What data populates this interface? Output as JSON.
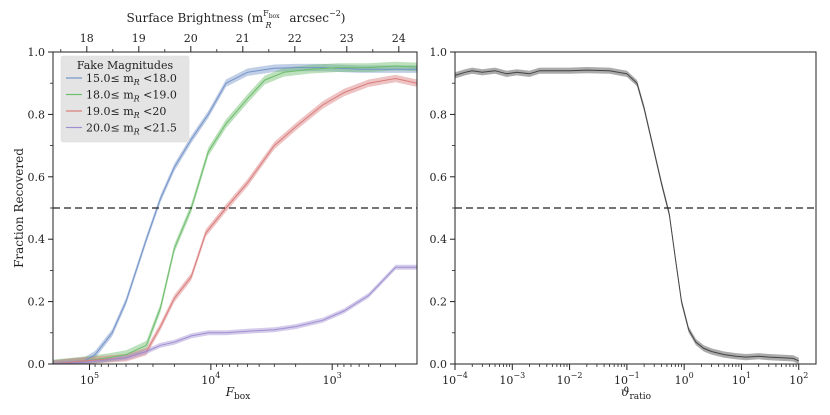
{
  "chart_data": [
    {
      "type": "line",
      "top_xlabel": "Surface Brightness",
      "top_xlabel_math": "(m",
      "top_xlabel_sub": "R",
      "top_xlabel_sup": "F",
      "top_xlabel_supsub": "box",
      "top_xlabel_unit": "arcsec",
      "top_xlabel_unit_sup": "−2",
      "top_xlabel_close": ")",
      "xlabel": "F",
      "xlabel_sub": "box",
      "ylabel": "Fraction Recovered",
      "x_scale": "log-reversed",
      "xlim": [
        200000,
        200
      ],
      "ylim": [
        0,
        1.0
      ],
      "x_ticks": [
        {
          "value": 100000,
          "base": "10",
          "exp": "5"
        },
        {
          "value": 10000,
          "base": "10",
          "exp": "4"
        },
        {
          "value": 1000,
          "base": "10",
          "exp": "3"
        }
      ],
      "top_ticks": [
        {
          "mag": 18,
          "label": "18"
        },
        {
          "mag": 19,
          "label": "19"
        },
        {
          "mag": 20,
          "label": "20"
        },
        {
          "mag": 21,
          "label": "21"
        },
        {
          "mag": 22,
          "label": "22"
        },
        {
          "mag": 23,
          "label": "23"
        },
        {
          "mag": 24,
          "label": "24"
        }
      ],
      "y_ticks": [
        "0.0",
        "0.2",
        "0.4",
        "0.6",
        "0.8",
        "1.0"
      ],
      "hline": 0.5,
      "legend": {
        "title": "Fake Magnitudes",
        "placement": "upper-left"
      },
      "series": [
        {
          "name": "15.0≤ m",
          "name_sub": "R",
          "name_tail": " <18.0",
          "color": "#7393c8",
          "band": 0.012,
          "x": [
            200000,
            110000,
            90000,
            65000,
            50000,
            34000,
            26000,
            20000,
            14500,
            10500,
            7500,
            5000,
            3000,
            2000,
            1200,
            600,
            200
          ],
          "y": [
            0.0,
            0.01,
            0.03,
            0.1,
            0.2,
            0.4,
            0.53,
            0.63,
            0.72,
            0.8,
            0.9,
            0.935,
            0.948,
            0.95,
            0.95,
            0.945,
            0.945
          ]
        },
        {
          "name": "18.0≤ m",
          "name_sub": "R",
          "name_tail": " <19.0",
          "color": "#6cbd6c",
          "band": 0.014,
          "x": [
            200000,
            110000,
            70000,
            50000,
            34000,
            26000,
            20000,
            14500,
            10500,
            7500,
            5000,
            3600,
            2500,
            1500,
            900,
            500,
            300,
            200
          ],
          "y": [
            0.0,
            0.01,
            0.02,
            0.03,
            0.06,
            0.18,
            0.37,
            0.5,
            0.68,
            0.77,
            0.85,
            0.91,
            0.935,
            0.945,
            0.95,
            0.95,
            0.955,
            0.952
          ]
        },
        {
          "name": "19.0≤ m",
          "name_sub": "R",
          "name_tail": " <20",
          "color": "#d97b7b",
          "band": 0.012,
          "x": [
            200000,
            110000,
            50000,
            34000,
            26000,
            20000,
            14500,
            11000,
            7500,
            5000,
            3000,
            2000,
            1200,
            800,
            500,
            300,
            200
          ],
          "y": [
            0.0,
            0.01,
            0.02,
            0.04,
            0.12,
            0.21,
            0.28,
            0.42,
            0.5,
            0.58,
            0.7,
            0.76,
            0.83,
            0.87,
            0.9,
            0.915,
            0.9
          ]
        },
        {
          "name": "20.0≤ m",
          "name_sub": "R",
          "name_tail": " <21.5",
          "color": "#9f8fd0",
          "band": 0.008,
          "x": [
            200000,
            110000,
            50000,
            34000,
            26000,
            20000,
            14500,
            10500,
            7500,
            5000,
            3000,
            2000,
            1200,
            800,
            500,
            300,
            200
          ],
          "y": [
            0.0,
            0.005,
            0.02,
            0.04,
            0.06,
            0.07,
            0.09,
            0.1,
            0.1,
            0.105,
            0.11,
            0.12,
            0.14,
            0.17,
            0.22,
            0.31,
            0.31
          ]
        }
      ]
    },
    {
      "type": "line",
      "xlabel": "ϑ",
      "xlabel_sub": "ratio",
      "x_scale": "log",
      "xlim": [
        0.0001,
        200
      ],
      "ylim": [
        0,
        1.0
      ],
      "x_ticks": [
        {
          "value": 0.0001,
          "base": "10",
          "exp": "−4"
        },
        {
          "value": 0.001,
          "base": "10",
          "exp": "−3"
        },
        {
          "value": 0.01,
          "base": "10",
          "exp": "−2"
        },
        {
          "value": 0.1,
          "base": "10",
          "exp": "−1"
        },
        {
          "value": 1,
          "base": "10",
          "exp": "0"
        },
        {
          "value": 10,
          "base": "10",
          "exp": "1"
        },
        {
          "value": 100,
          "base": "10",
          "exp": "2"
        }
      ],
      "y_ticks": [
        "0.0",
        "0.2",
        "0.4",
        "0.6",
        "0.8",
        "1.0"
      ],
      "hline": 0.5,
      "series": [
        {
          "color": "#444444",
          "band": 0.01,
          "x": [
            0.0001,
            0.00015,
            0.0002,
            0.0003,
            0.0005,
            0.0008,
            0.0012,
            0.002,
            0.003,
            0.005,
            0.01,
            0.02,
            0.05,
            0.1,
            0.15,
            0.2,
            0.3,
            0.4,
            0.55,
            0.7,
            0.9,
            1.2,
            1.6,
            2.2,
            3,
            5,
            8,
            12,
            20,
            30,
            50,
            80,
            100
          ],
          "y": [
            0.925,
            0.935,
            0.94,
            0.935,
            0.94,
            0.93,
            0.935,
            0.93,
            0.94,
            0.94,
            0.94,
            0.942,
            0.94,
            0.93,
            0.9,
            0.82,
            0.68,
            0.58,
            0.48,
            0.34,
            0.2,
            0.11,
            0.07,
            0.05,
            0.04,
            0.03,
            0.025,
            0.022,
            0.025,
            0.022,
            0.02,
            0.018,
            0.01
          ]
        }
      ]
    }
  ]
}
